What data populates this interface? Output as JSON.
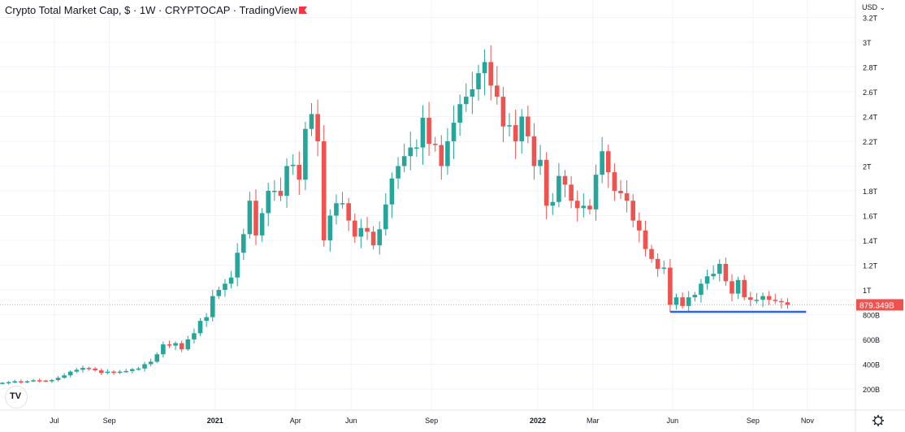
{
  "header": {
    "title": "Crypto Total Market Cap, $ · 1W · CRYPTOCAP · TradingView",
    "currency": "USD ⌄"
  },
  "logo": "TV",
  "colors": {
    "up": "#26a69a",
    "down": "#ef5350",
    "line": "#2962ff",
    "grid": "#f0f3fa"
  },
  "chart_data": {
    "type": "candlestick",
    "title": "Crypto Total Market Cap, $ · 1W · CRYPTOCAP",
    "unit": "B USD",
    "ylim": [
      0,
      3250
    ],
    "y_ticks": [
      {
        "v": 200,
        "label": "200B"
      },
      {
        "v": 400,
        "label": "400B"
      },
      {
        "v": 600,
        "label": "600B"
      },
      {
        "v": 800,
        "label": "800B"
      },
      {
        "v": 1000,
        "label": "1T"
      },
      {
        "v": 1200,
        "label": "1.2T"
      },
      {
        "v": 1400,
        "label": "1.4T"
      },
      {
        "v": 1600,
        "label": "1.6T"
      },
      {
        "v": 1800,
        "label": "1.8T"
      },
      {
        "v": 2000,
        "label": "2T"
      },
      {
        "v": 2200,
        "label": "2.2T"
      },
      {
        "v": 2400,
        "label": "2.4T"
      },
      {
        "v": 2600,
        "label": "2.6T"
      },
      {
        "v": 2800,
        "label": "2.8T"
      },
      {
        "v": 3000,
        "label": "3T"
      },
      {
        "v": 3200,
        "label": "3.2T"
      }
    ],
    "x_ticks": [
      {
        "week": 8.4,
        "label": "Jul"
      },
      {
        "week": 17.3,
        "label": "Sep"
      },
      {
        "week": 34.4,
        "label": "2021"
      },
      {
        "week": 47.4,
        "label": "Apr"
      },
      {
        "week": 56.4,
        "label": "Jun"
      },
      {
        "week": 69.4,
        "label": "Sep"
      },
      {
        "week": 86.6,
        "label": "2022"
      },
      {
        "week": 95.5,
        "label": "Mar"
      },
      {
        "week": 108.4,
        "label": "Jun"
      },
      {
        "week": 121.4,
        "label": "Sep"
      },
      {
        "week": 130.2,
        "label": "Nov"
      }
    ],
    "first_open": 245,
    "closes": [
      250,
      255,
      262,
      258,
      262,
      270,
      268,
      265,
      272,
      290,
      310,
      340,
      355,
      370,
      365,
      350,
      330,
      340,
      335,
      340,
      345,
      360,
      365,
      400,
      420,
      480,
      560,
      550,
      570,
      520,
      600,
      650,
      750,
      780,
      950,
      1000,
      1050,
      1100,
      1300,
      1450,
      1720,
      1440,
      1620,
      1800,
      1800,
      1760,
      2000,
      2010,
      1890,
      2300,
      2420,
      2200,
      1400,
      1600,
      1700,
      1700,
      1560,
      1430,
      1500,
      1470,
      1360,
      1490,
      1690,
      1900,
      2000,
      2080,
      2150,
      2150,
      2390,
      2180,
      2170,
      2000,
      2200,
      2350,
      2500,
      2560,
      2620,
      2750,
      2840,
      2650,
      2560,
      2320,
      2330,
      2200,
      2400,
      2240,
      2000,
      2050,
      1680,
      1710,
      1920,
      1850,
      1720,
      1660,
      1680,
      1650,
      1930,
      2120,
      1950,
      1800,
      1780,
      1720,
      1560,
      1480,
      1330,
      1250,
      1170,
      1180,
      880,
      940,
      870,
      940,
      960,
      1050,
      1110,
      1130,
      1210,
      1070,
      970,
      1080,
      940,
      920,
      920,
      950,
      920,
      910,
      900,
      879.349
    ],
    "last_price_label": "879.349B",
    "support_line": {
      "value": 823,
      "from_week": 108,
      "to_week": 130
    }
  }
}
